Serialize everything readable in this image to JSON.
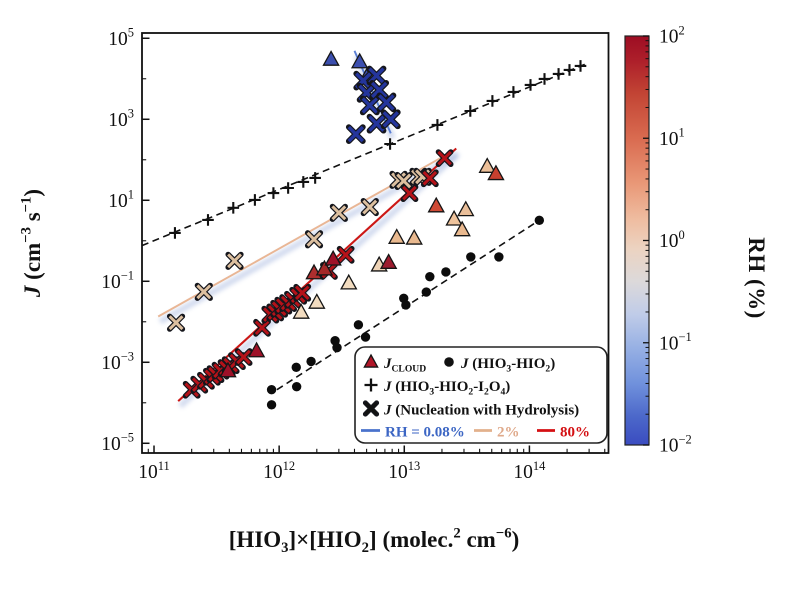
{
  "chart_data": {
    "type": "scatter",
    "title": "",
    "x_axis": {
      "label_parts": [
        {
          "t": "[HIO",
          "b": 1
        },
        {
          "t": "3",
          "b": 1,
          "v": "sub"
        },
        {
          "t": "]×[HIO",
          "b": 1
        },
        {
          "t": "2",
          "b": 1,
          "v": "sub"
        },
        {
          "t": "] (molec.",
          "b": 1
        },
        {
          "t": "2",
          "b": 1,
          "v": "sup"
        },
        {
          "t": " cm",
          "b": 1
        },
        {
          "t": "−6",
          "b": 1,
          "v": "sup"
        },
        {
          "t": ")",
          "b": 1
        }
      ],
      "ticks": [
        {
          "exp": "11",
          "v": 100000000000.0
        },
        {
          "exp": "12",
          "v": 1000000000000.0
        },
        {
          "exp": "13",
          "v": 10000000000000.0
        },
        {
          "exp": "14",
          "v": 100000000000000.0
        }
      ],
      "log_range": [
        10.904,
        14.632
      ],
      "scale": "log"
    },
    "y_axis": {
      "label_parts": [
        {
          "t": "J",
          "b": 1,
          "i": 1
        },
        {
          "t": " (cm",
          "b": 1
        },
        {
          "t": "−3",
          "b": 1,
          "v": "sup"
        },
        {
          "t": " s",
          "b": 1
        },
        {
          "t": "−1",
          "b": 1,
          "v": "sup"
        },
        {
          "t": ")",
          "b": 1
        }
      ],
      "ticks": [
        {
          "exp": "5",
          "v": 100000.0
        },
        {
          "exp": "3",
          "v": 1000.0
        },
        {
          "exp": "1",
          "v": 10
        },
        {
          "exp": "−1",
          "v": 0.1
        },
        {
          "exp": "−3",
          "v": 0.001
        },
        {
          "exp": "−5",
          "v": 1e-05
        }
      ],
      "minor_decades": [
        4,
        2,
        0,
        -2,
        -4
      ],
      "log_range": [
        -5.24,
        5.13
      ],
      "scale": "log"
    },
    "colorbar": {
      "label": "RH (%)",
      "log_range": [
        -2,
        2
      ],
      "ticks": [
        {
          "exp": "2"
        },
        {
          "exp": "1"
        },
        {
          "exp": "0"
        },
        {
          "exp": "−1"
        },
        {
          "exp": "−2"
        }
      ],
      "gradient": [
        [
          0,
          "#9d0d23"
        ],
        [
          0.06,
          "#ad1f2a"
        ],
        [
          0.14,
          "#c24434"
        ],
        [
          0.25,
          "#d96b50"
        ],
        [
          0.36,
          "#e99877"
        ],
        [
          0.45,
          "#efbda1"
        ],
        [
          0.52,
          "#ecd3c1"
        ],
        [
          0.6,
          "#dcd9da"
        ],
        [
          0.68,
          "#c0cce8"
        ],
        [
          0.76,
          "#98b1e4"
        ],
        [
          0.85,
          "#7091dc"
        ],
        [
          0.93,
          "#4c68ca"
        ],
        [
          1,
          "#3a4cc0"
        ]
      ]
    },
    "legend": {
      "rows": [
        [
          {
            "marker": "triangle",
            "mcolor": "#b01527",
            "parts": [
              {
                "t": "J",
                "b": 1,
                "i": 1
              },
              {
                "t": "CLOUD",
                "b": 1,
                "v": "sub"
              }
            ]
          },
          {
            "marker": "circle",
            "mcolor": "#111111",
            "parts": [
              {
                "t": "J",
                "b": 1,
                "i": 1
              },
              {
                "t": " (HIO",
                "b": 1
              },
              {
                "t": "3",
                "b": 1,
                "v": "sub"
              },
              {
                "t": "-HIO",
                "b": 1
              },
              {
                "t": "2",
                "b": 1,
                "v": "sub"
              },
              {
                "t": ")",
                "b": 1
              }
            ]
          }
        ],
        [
          {
            "marker": "plus",
            "mcolor": "#111111",
            "parts": [
              {
                "t": "J",
                "b": 1,
                "i": 1
              },
              {
                "t": " (HIO",
                "b": 1
              },
              {
                "t": "3",
                "b": 1,
                "v": "sub"
              },
              {
                "t": "-HIO",
                "b": 1
              },
              {
                "t": "2",
                "b": 1,
                "v": "sub"
              },
              {
                "t": "-I",
                "b": 1
              },
              {
                "t": "2",
                "b": 1,
                "v": "sub"
              },
              {
                "t": "O",
                "b": 1
              },
              {
                "t": "4",
                "b": 1,
                "v": "sub"
              },
              {
                "t": ")",
                "b": 1
              }
            ]
          }
        ],
        [
          {
            "marker": "x",
            "mcolor": "#111111",
            "parts": [
              {
                "t": "J",
                "b": 1,
                "i": 1
              },
              {
                "t": " (Nucleation with Hydrolysis)",
                "b": 1
              }
            ]
          }
        ]
      ],
      "rh_row": [
        {
          "line_color": "#4a72cc",
          "text_color": "#3c66c4",
          "parts": [
            {
              "t": "RH = 0.08%",
              "b": 1
            }
          ]
        },
        {
          "line_color": "#e2b18c",
          "text_color": "#dfa98a",
          "parts": [
            {
              "t": "2%",
              "b": 1
            }
          ]
        },
        {
          "line_color": "#d40f12",
          "text_color": "#d40f12",
          "parts": [
            {
              "t": "80%",
              "b": 1
            }
          ]
        }
      ]
    },
    "series": [
      {
        "name": "J (HIO3-HIO2-I2O4)",
        "marker": "plus",
        "color": "#111111",
        "size": 5.8,
        "stroke_w": 2.1,
        "points": [
          [
            147000000000.0,
            1.56
          ],
          [
            270000000000.0,
            3.27
          ],
          [
            430000000000.0,
            6.5
          ],
          [
            640000000000.0,
            10.2
          ],
          [
            900000000000.0,
            15.1
          ],
          [
            1180000000000.0,
            20.1
          ],
          [
            1560000000000.0,
            28.3
          ],
          [
            1940000000000.0,
            35.6
          ],
          [
            7700000000000.0,
            245
          ],
          [
            18400000000000.0,
            723
          ],
          [
            33700000000000.0,
            1600
          ],
          [
            50600000000000.0,
            2830
          ],
          [
            74500000000000.0,
            4720
          ],
          [
            102000000000000.0,
            7030
          ],
          [
            132000000000000.0,
            9890
          ],
          [
            171000000000000.0,
            13150
          ],
          [
            209000000000000.0,
            16480
          ],
          [
            256000000000000.0,
            20700
          ]
        ]
      },
      {
        "name": "J (HIO3-HIO2)",
        "marker": "circle",
        "color": "#0c0c0c",
        "size": 4.7,
        "points": [
          [
            870000000000.0,
            0.00021
          ],
          [
            870000000000.0,
            8.9e-05
          ],
          [
            1370000000000.0,
            0.00075
          ],
          [
            1380000000000.0,
            0.00025
          ],
          [
            1800000000000.0,
            0.00105
          ],
          [
            2800000000000.0,
            0.0034
          ],
          [
            2900000000000.0,
            0.0023
          ],
          [
            4300000000000.0,
            0.0084
          ],
          [
            4900000000000.0,
            0.0042
          ],
          [
            9900000000000.0,
            0.038
          ],
          [
            10300000000000.0,
            0.026
          ],
          [
            15000000000000.0,
            0.054
          ],
          [
            16000000000000.0,
            0.13
          ],
          [
            21500000000000.0,
            0.17
          ],
          [
            34000000000000.0,
            0.4
          ],
          [
            57000000000000.0,
            0.4
          ],
          [
            120000000000000.0,
            3.2
          ]
        ]
      },
      {
        "name": "J nucleation with hydrolysis RH 2%",
        "marker": "x",
        "color": "#dcbf9f",
        "size": 6.4,
        "stroke_w": 3.0,
        "points": [
          [
            150000000000.0,
            0.0095
          ],
          [
            250000000000.0,
            0.055
          ],
          [
            440000000000.0,
            0.32
          ],
          [
            1900000000000.0,
            1.09
          ],
          [
            3000000000000.0,
            4.9
          ],
          [
            5300000000000.0,
            6.8
          ],
          [
            9000000000000.0,
            32
          ],
          [
            9900000000000.0,
            30
          ],
          [
            13000000000000.0,
            38
          ],
          [
            14000000000000.0,
            38
          ]
        ]
      },
      {
        "name": "J nucleation with hydrolysis RH 80%",
        "marker": "x",
        "color": "#b51219",
        "size": 6.2,
        "stroke_w": 3.0,
        "points": [
          [
            200000000000.0,
            0.00021
          ],
          [
            230000000000.0,
            0.00028
          ],
          [
            260000000000.0,
            0.00035
          ],
          [
            290000000000.0,
            0.00044
          ],
          [
            310000000000.0,
            0.00051
          ],
          [
            340000000000.0,
            0.00062
          ],
          [
            380000000000.0,
            0.00072
          ],
          [
            410000000000.0,
            0.00085
          ],
          [
            460000000000.0,
            0.00107
          ],
          [
            520000000000.0,
            0.00135
          ],
          [
            730000000000.0,
            0.0071
          ],
          [
            850000000000.0,
            0.015
          ],
          [
            930000000000.0,
            0.017
          ],
          [
            1000000000000.0,
            0.021
          ],
          [
            1080000000000.0,
            0.025
          ],
          [
            1180000000000.0,
            0.029
          ],
          [
            1290000000000.0,
            0.035
          ],
          [
            1420000000000.0,
            0.044
          ],
          [
            1530000000000.0,
            0.052
          ],
          [
            2500000000000.0,
            0.18
          ],
          [
            3400000000000.0,
            0.45
          ],
          [
            11000000000000.0,
            15
          ],
          [
            16000000000000.0,
            35
          ],
          [
            21000000000000.0,
            110
          ]
        ]
      },
      {
        "name": "J_CLOUD",
        "marker": "triangle",
        "size": 8,
        "points": [
          [
            390000000000.0,
            0.00061,
            "#9e1128"
          ],
          [
            660000000000.0,
            0.0019,
            "#9e1128"
          ],
          [
            1500000000000.0,
            0.017,
            "#f2dcc0"
          ],
          [
            2000000000000.0,
            0.03,
            "#f2dcc0"
          ],
          [
            1900000000000.0,
            0.16,
            "#ad2e2e"
          ],
          [
            2300000000000.0,
            0.2,
            "#a42828"
          ],
          [
            2700000000000.0,
            0.35,
            "#9e1128"
          ],
          [
            3600000000000.0,
            0.09,
            "#f2dcc0"
          ],
          [
            6300000000000.0,
            0.25,
            "#eed3b6"
          ],
          [
            7500000000000.0,
            0.29,
            "#9c1b2e"
          ],
          [
            8700000000000.0,
            1.2,
            "#e9b98f"
          ],
          [
            12000000000000.0,
            1.15,
            "#e9b98f"
          ],
          [
            18000000000000.0,
            7.2,
            "#cf4a35"
          ],
          [
            25000000000000.0,
            3.4,
            "#eec39c"
          ],
          [
            29000000000000.0,
            1.85,
            "#e9b98f"
          ],
          [
            31000000000000.0,
            5.8,
            "#eabf9a"
          ],
          [
            46000000000000.0,
            68,
            "#ecbf98"
          ],
          [
            54000000000000.0,
            45,
            "#c8402f"
          ],
          [
            2600000000000.0,
            30000.0,
            "#3c4fae"
          ],
          [
            4400000000000.0,
            26000.0,
            "#3c4fae"
          ],
          [
            5000000000000.0,
            11000.0,
            "#3c4fae"
          ]
        ]
      },
      {
        "name": "J nucleation with hydrolysis RH 0.08%",
        "marker": "x",
        "color": "#24359c",
        "size": 7.0,
        "stroke_w": 3.4,
        "points": [
          [
            4100000000000.0,
            430
          ],
          [
            4700000000000.0,
            9000
          ],
          [
            5000000000000.0,
            4500
          ],
          [
            5300000000000.0,
            2200
          ],
          [
            6000000000000.0,
            12000
          ],
          [
            6000000000000.0,
            780
          ],
          [
            6300000000000.0,
            5300
          ],
          [
            7200000000000.0,
            2600
          ],
          [
            7800000000000.0,
            1000
          ]
        ]
      }
    ],
    "fit_lines": [
      {
        "name": "fit-hio3-hio2-i2o4",
        "p": [
          [
            80000000000.0,
            0.76
          ],
          [
            280000000000000.0,
            23000.0
          ]
        ],
        "color": "#111111",
        "dash": "7 4.5",
        "w": 1.6
      },
      {
        "name": "fit-hio3-hio2",
        "p": [
          [
            960000000000.0,
            0.00021
          ],
          [
            118000000000000.0,
            3.1
          ]
        ],
        "color": "#111111",
        "dash": "7 4.5",
        "w": 1.6
      },
      {
        "name": "fit-rh-0.08",
        "p": [
          [
            4000000000000.0,
            49000.0
          ],
          [
            7800000000000.0,
            450.0
          ]
        ],
        "color": "#5b7fd4",
        "w": 1.9,
        "shadow": 1
      },
      {
        "name": "fit-rh-2",
        "p": [
          [
            108000000000.0,
            0.0135
          ],
          [
            25000000000000.0,
            170.0
          ]
        ],
        "color": "#e9b695",
        "w": 1.9,
        "shadow": 1
      },
      {
        "name": "fit-rh-80",
        "p": [
          [
            156000000000.0,
            0.00011
          ],
          [
            26000000000000.0,
            190.0
          ]
        ],
        "color": "#cc1715",
        "w": 2.1,
        "shadow": 1
      }
    ]
  }
}
